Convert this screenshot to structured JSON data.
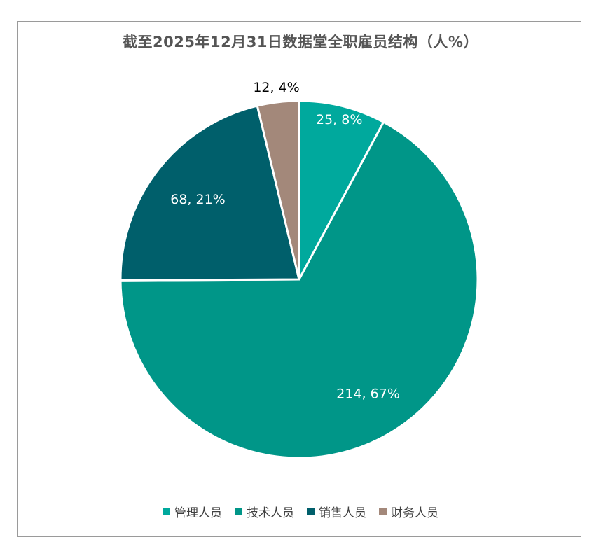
{
  "chart_data": {
    "type": "pie",
    "title": "截至2025年12月31日数据堂全职雇员结构（人%）",
    "categories": [
      "管理人员",
      "技术人员",
      "销售人员",
      "财务人员"
    ],
    "values": [
      25,
      214,
      68,
      12
    ],
    "percents": [
      8,
      67,
      21,
      4
    ],
    "data_labels": [
      "25, 8%",
      "214, 67%",
      "68, 21%",
      "12, 4%"
    ],
    "colors": [
      "#00a99d",
      "#009688",
      "#005f6b",
      "#a3887a"
    ],
    "label_colors": [
      "#ffffff",
      "#ffffff",
      "#ffffff",
      "#000000"
    ],
    "legend_position": "bottom",
    "start_angle_deg": 0,
    "direction": "clockwise"
  }
}
